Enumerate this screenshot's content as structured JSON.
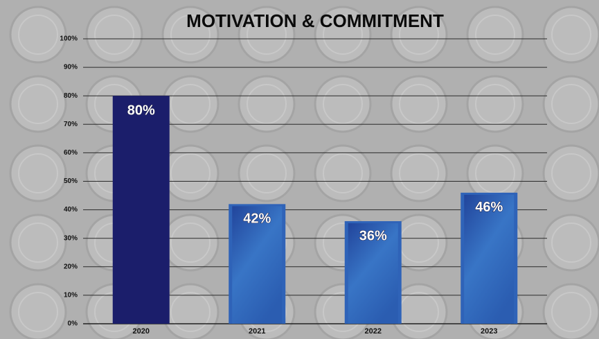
{
  "chart_data": {
    "type": "bar",
    "title": "MOTIVATION & COMMITMENT",
    "categories": [
      "2020",
      "2021",
      "2022",
      "2023"
    ],
    "values": [
      80,
      42,
      36,
      46
    ],
    "value_labels": [
      "80%",
      "42%",
      "36%",
      "46%"
    ],
    "colors": [
      "#1b1e6b",
      "#2f63b8",
      "#2f63b8",
      "#2f63b8"
    ],
    "ylim": [
      0,
      100
    ],
    "yticks": [
      {
        "value": 0,
        "label": "0%"
      },
      {
        "value": 10,
        "label": "10%"
      },
      {
        "value": 20,
        "label": "20%"
      },
      {
        "value": 30,
        "label": "30%"
      },
      {
        "value": 40,
        "label": "40%"
      },
      {
        "value": 50,
        "label": "50%"
      },
      {
        "value": 60,
        "label": "60%"
      },
      {
        "value": 70,
        "label": "70%"
      },
      {
        "value": 80,
        "label": "80%"
      },
      {
        "value": 90,
        "label": "90%"
      },
      {
        "value": 100,
        "label": "100%"
      }
    ],
    "grid": true
  }
}
